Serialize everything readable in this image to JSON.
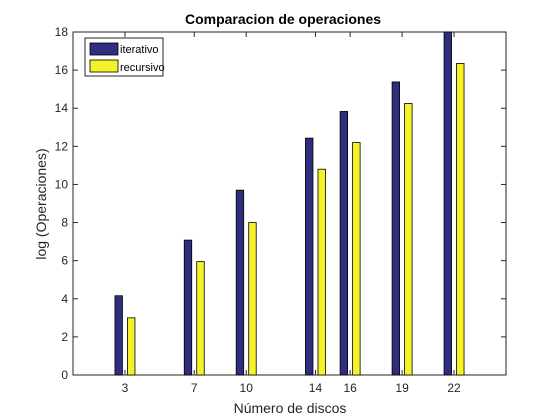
{
  "chart_data": {
    "type": "bar",
    "title": "Comparacion de operaciones",
    "xlabel": "Número de discos",
    "ylabel": "log (Operaciones)",
    "x": [
      3,
      7,
      10,
      14,
      16,
      19,
      22
    ],
    "xlim": [
      0,
      25
    ],
    "ylim": [
      0,
      18
    ],
    "yticks": [
      0,
      2,
      4,
      6,
      8,
      10,
      12,
      14,
      16,
      18
    ],
    "grid": false,
    "legend_position": "top-left",
    "series": [
      {
        "name": "iterativo",
        "color": "#2e2d7e",
        "values": [
          4.16,
          7.08,
          9.7,
          12.43,
          13.83,
          15.38,
          18.0
        ]
      },
      {
        "name": "recursivo",
        "color": "#f5f229",
        "values": [
          3.0,
          5.95,
          8.0,
          10.8,
          12.2,
          14.25,
          16.35
        ]
      }
    ]
  }
}
